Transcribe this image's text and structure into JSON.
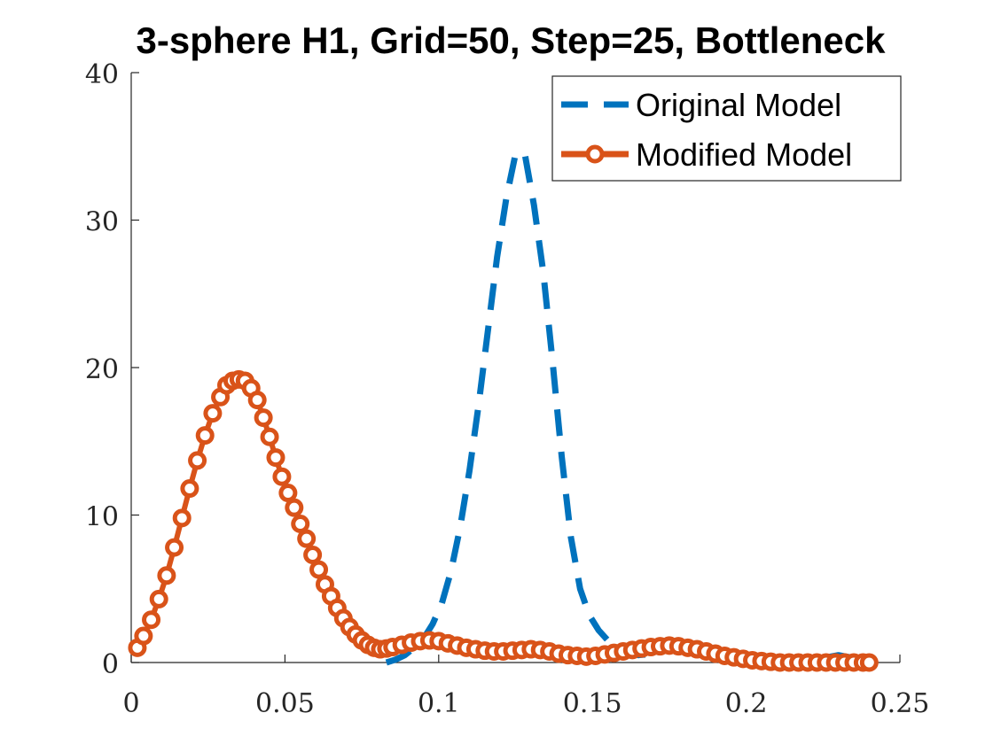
{
  "chart_data": {
    "type": "line",
    "title": "3-sphere H1, Grid=50, Step=25, Bottleneck",
    "xlabel": "",
    "ylabel": "",
    "xlim": [
      0,
      0.25
    ],
    "ylim": [
      0,
      40
    ],
    "xticks": [
      0,
      0.05,
      0.1,
      0.15,
      0.2,
      0.25
    ],
    "xtick_labels": [
      "0",
      "0.05",
      "0.1",
      "0.15",
      "0.2",
      "0.25"
    ],
    "yticks": [
      0,
      10,
      20,
      30,
      40
    ],
    "ytick_labels": [
      "0",
      "10",
      "20",
      "30",
      "40"
    ],
    "grid": false,
    "legend": "top-right",
    "series": [
      {
        "name": "Original Model",
        "color": "#0072BD",
        "style": "dashed",
        "marker": "none",
        "x": [
          0.083,
          0.086,
          0.089,
          0.092,
          0.095,
          0.098,
          0.101,
          0.104,
          0.107,
          0.11,
          0.113,
          0.116,
          0.119,
          0.122,
          0.125,
          0.128,
          0.131,
          0.134,
          0.137,
          0.14,
          0.143,
          0.146,
          0.149,
          0.152,
          0.155,
          0.158,
          0.161,
          0.165,
          0.17,
          0.175,
          0.18,
          0.185,
          0.19,
          0.195,
          0.2,
          0.205,
          0.21,
          0.215,
          0.22,
          0.225,
          0.23,
          0.235,
          0.24
        ],
        "y": [
          0.0,
          0.2,
          0.5,
          1.0,
          1.6,
          2.6,
          4.0,
          6.2,
          9.2,
          13.0,
          17.5,
          22.5,
          27.5,
          31.5,
          34.5,
          34.5,
          31.0,
          26.5,
          20.5,
          14.0,
          8.5,
          5.0,
          3.2,
          2.2,
          1.5,
          1.0,
          0.7,
          0.5,
          0.6,
          0.9,
          1.2,
          1.1,
          0.9,
          0.7,
          0.4,
          0.2,
          0.0,
          0.0,
          0.1,
          0.3,
          0.5,
          0.3,
          0.0
        ]
      },
      {
        "name": "Modified Model",
        "color": "#D95319",
        "style": "solid",
        "marker": "circle",
        "x": [
          0.002,
          0.004,
          0.0065,
          0.009,
          0.0115,
          0.014,
          0.0165,
          0.019,
          0.0215,
          0.024,
          0.0265,
          0.029,
          0.031,
          0.033,
          0.035,
          0.037,
          0.039,
          0.041,
          0.043,
          0.045,
          0.047,
          0.049,
          0.051,
          0.053,
          0.055,
          0.057,
          0.059,
          0.061,
          0.063,
          0.065,
          0.067,
          0.069,
          0.071,
          0.073,
          0.075,
          0.077,
          0.079,
          0.081,
          0.083,
          0.085,
          0.088,
          0.091,
          0.094,
          0.097,
          0.1,
          0.103,
          0.106,
          0.109,
          0.112,
          0.115,
          0.118,
          0.121,
          0.124,
          0.127,
          0.13,
          0.133,
          0.136,
          0.139,
          0.142,
          0.145,
          0.148,
          0.151,
          0.154,
          0.157,
          0.16,
          0.163,
          0.166,
          0.169,
          0.172,
          0.175,
          0.178,
          0.181,
          0.184,
          0.187,
          0.19,
          0.193,
          0.196,
          0.199,
          0.202,
          0.205,
          0.208,
          0.211,
          0.214,
          0.217,
          0.22,
          0.223,
          0.226,
          0.229,
          0.232,
          0.235,
          0.238,
          0.24
        ],
        "y": [
          1.0,
          1.8,
          2.9,
          4.3,
          5.9,
          7.8,
          9.8,
          11.8,
          13.7,
          15.4,
          16.9,
          18.0,
          18.8,
          19.1,
          19.2,
          19.1,
          18.6,
          17.8,
          16.6,
          15.3,
          13.9,
          12.6,
          11.5,
          10.5,
          9.4,
          8.4,
          7.3,
          6.3,
          5.3,
          4.5,
          3.7,
          3.0,
          2.4,
          1.9,
          1.5,
          1.2,
          1.0,
          0.9,
          0.95,
          1.05,
          1.2,
          1.35,
          1.45,
          1.5,
          1.45,
          1.3,
          1.15,
          1.0,
          0.9,
          0.8,
          0.75,
          0.75,
          0.8,
          0.85,
          0.9,
          0.85,
          0.75,
          0.6,
          0.5,
          0.45,
          0.4,
          0.45,
          0.55,
          0.65,
          0.75,
          0.85,
          0.95,
          1.05,
          1.1,
          1.15,
          1.1,
          1.0,
          0.9,
          0.75,
          0.6,
          0.45,
          0.35,
          0.25,
          0.15,
          0.1,
          0.05,
          0.0,
          0.0,
          0.0,
          0.0,
          0.0,
          0.0,
          0.0,
          0.0,
          0.0,
          0.0,
          0.0
        ]
      }
    ]
  }
}
